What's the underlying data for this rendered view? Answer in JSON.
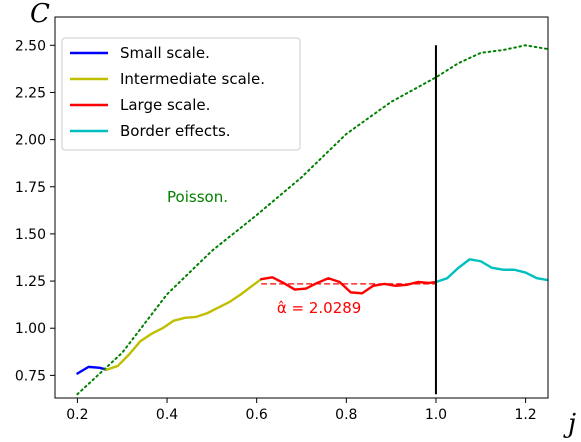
{
  "chart_data": {
    "type": "line",
    "title": "",
    "xlabel": "j",
    "ylabel": "C",
    "xlim": [
      0.15,
      1.25
    ],
    "ylim": [
      0.63,
      2.65
    ],
    "x_ticks": [
      0.2,
      0.4,
      0.6,
      0.8,
      1.0,
      1.2
    ],
    "x_tick_labels": [
      "0.2",
      "0.4",
      "0.6",
      "0.8",
      "1.0",
      "1.2"
    ],
    "y_ticks": [
      0.75,
      1.0,
      1.25,
      1.5,
      1.75,
      2.0,
      2.25,
      2.5
    ],
    "y_tick_labels": [
      "0.75",
      "1.00",
      "1.25",
      "1.50",
      "1.75",
      "2.00",
      "2.25",
      "2.50"
    ],
    "grid": false,
    "legend_position": "top-left",
    "series": [
      {
        "name": "Small scale.",
        "color": "#0000ff",
        "style": "solid",
        "points": [
          [
            0.2,
            0.76
          ],
          [
            0.225,
            0.795
          ],
          [
            0.25,
            0.79
          ],
          [
            0.265,
            0.78
          ]
        ]
      },
      {
        "name": "Intermediate scale.",
        "color": "#bfbf00",
        "style": "solid",
        "points": [
          [
            0.265,
            0.78
          ],
          [
            0.29,
            0.8
          ],
          [
            0.315,
            0.86
          ],
          [
            0.34,
            0.93
          ],
          [
            0.365,
            0.97
          ],
          [
            0.39,
            1.0
          ],
          [
            0.415,
            1.04
          ],
          [
            0.44,
            1.055
          ],
          [
            0.465,
            1.06
          ],
          [
            0.49,
            1.08
          ],
          [
            0.515,
            1.11
          ],
          [
            0.54,
            1.14
          ],
          [
            0.565,
            1.18
          ],
          [
            0.59,
            1.225
          ],
          [
            0.61,
            1.26
          ]
        ]
      },
      {
        "name": "Large scale.",
        "color": "#ff0000",
        "style": "solid",
        "points": [
          [
            0.61,
            1.26
          ],
          [
            0.635,
            1.27
          ],
          [
            0.66,
            1.24
          ],
          [
            0.685,
            1.205
          ],
          [
            0.71,
            1.21
          ],
          [
            0.735,
            1.24
          ],
          [
            0.76,
            1.265
          ],
          [
            0.785,
            1.245
          ],
          [
            0.81,
            1.19
          ],
          [
            0.835,
            1.185
          ],
          [
            0.86,
            1.225
          ],
          [
            0.885,
            1.235
          ],
          [
            0.91,
            1.225
          ],
          [
            0.935,
            1.23
          ],
          [
            0.96,
            1.245
          ],
          [
            0.985,
            1.24
          ],
          [
            1.0,
            1.245
          ]
        ]
      },
      {
        "name": "Border effects.",
        "color": "#00bfbf",
        "style": "solid",
        "points": [
          [
            1.0,
            1.245
          ],
          [
            1.025,
            1.265
          ],
          [
            1.05,
            1.32
          ],
          [
            1.075,
            1.365
          ],
          [
            1.1,
            1.355
          ],
          [
            1.125,
            1.32
          ],
          [
            1.15,
            1.31
          ],
          [
            1.175,
            1.31
          ],
          [
            1.2,
            1.295
          ],
          [
            1.225,
            1.265
          ],
          [
            1.25,
            1.255
          ]
        ]
      },
      {
        "name": "Poisson.",
        "color": "#008000",
        "style": "dotted",
        "points": [
          [
            0.2,
            0.65
          ],
          [
            0.3,
            0.87
          ],
          [
            0.4,
            1.18
          ],
          [
            0.5,
            1.41
          ],
          [
            0.6,
            1.6
          ],
          [
            0.7,
            1.8
          ],
          [
            0.8,
            2.03
          ],
          [
            0.9,
            2.2
          ],
          [
            1.0,
            2.33
          ],
          [
            1.05,
            2.405
          ],
          [
            1.1,
            2.46
          ],
          [
            1.15,
            2.475
          ],
          [
            1.2,
            2.5
          ],
          [
            1.25,
            2.48
          ]
        ]
      }
    ],
    "fit_line": {
      "color": "#ff0000",
      "style": "dashed",
      "x_start": 0.61,
      "x_end": 1.0,
      "y": 1.235
    },
    "vertical_line": {
      "color": "#000000",
      "x": 1.0,
      "y_start": 0.65,
      "y_end": 2.5
    },
    "annotations": [
      {
        "text": "Poisson.",
        "color": "#008000",
        "x": 0.4,
        "y": 1.67
      },
      {
        "text": "α̂ = 2.0289",
        "color": "#ff0000",
        "x": 0.645,
        "y": 1.08
      }
    ]
  }
}
